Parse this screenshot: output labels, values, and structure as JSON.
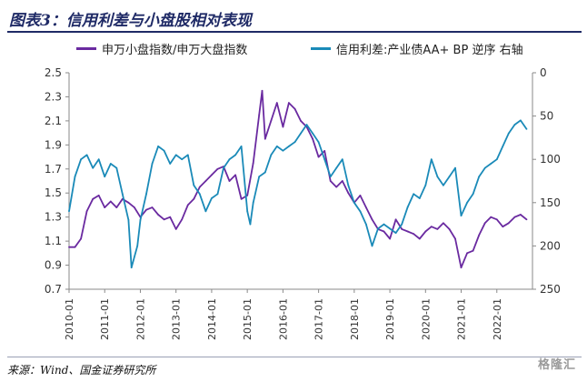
{
  "title": "图表3：信用利差与小盘股相对表现",
  "source": "来源：Wind、国金证券研究所",
  "watermark": "格隆汇",
  "colors": {
    "title": "#1f2a66",
    "series_purple": "#6a2aa0",
    "series_blue": "#1a8ab8"
  },
  "chart_data": {
    "type": "line",
    "x_ticks": [
      "2010-01",
      "2011-01",
      "2012-01",
      "2013-01",
      "2014-01",
      "2015-01",
      "2016-01",
      "2017-01",
      "2018-01",
      "2019-01",
      "2020-01",
      "2021-01",
      "2022-01"
    ],
    "left_axis": {
      "ticks": [
        "2.5",
        "2.3",
        "2.1",
        "1.9",
        "1.7",
        "1.5",
        "1.3",
        "1.1",
        "0.9",
        "0.7"
      ],
      "ylim": [
        0.7,
        2.5
      ]
    },
    "right_axis": {
      "ticks": [
        "0",
        "50",
        "100",
        "150",
        "200",
        "250"
      ],
      "ylim": [
        0,
        250
      ],
      "inverted": true
    },
    "legend_position": "top",
    "series": [
      {
        "name": "申万小盘指数/申万大盘指数",
        "axis": "left",
        "points": [
          [
            "2010-01",
            1.05
          ],
          [
            "2010-03",
            1.05
          ],
          [
            "2010-05",
            1.12
          ],
          [
            "2010-07",
            1.35
          ],
          [
            "2010-09",
            1.45
          ],
          [
            "2010-11",
            1.48
          ],
          [
            "2011-01",
            1.38
          ],
          [
            "2011-03",
            1.43
          ],
          [
            "2011-05",
            1.38
          ],
          [
            "2011-07",
            1.45
          ],
          [
            "2011-09",
            1.42
          ],
          [
            "2011-11",
            1.38
          ],
          [
            "2012-01",
            1.3
          ],
          [
            "2012-03",
            1.36
          ],
          [
            "2012-05",
            1.38
          ],
          [
            "2012-07",
            1.32
          ],
          [
            "2012-09",
            1.28
          ],
          [
            "2012-11",
            1.3
          ],
          [
            "2013-01",
            1.2
          ],
          [
            "2013-03",
            1.28
          ],
          [
            "2013-05",
            1.4
          ],
          [
            "2013-07",
            1.45
          ],
          [
            "2013-09",
            1.55
          ],
          [
            "2013-11",
            1.6
          ],
          [
            "2014-01",
            1.65
          ],
          [
            "2014-03",
            1.7
          ],
          [
            "2014-05",
            1.72
          ],
          [
            "2014-07",
            1.6
          ],
          [
            "2014-09",
            1.65
          ],
          [
            "2014-11",
            1.45
          ],
          [
            "2015-01",
            1.48
          ],
          [
            "2015-03",
            1.75
          ],
          [
            "2015-05",
            2.15
          ],
          [
            "2015-06",
            2.35
          ],
          [
            "2015-07",
            1.95
          ],
          [
            "2015-09",
            2.1
          ],
          [
            "2015-11",
            2.25
          ],
          [
            "2016-01",
            2.05
          ],
          [
            "2016-03",
            2.25
          ],
          [
            "2016-05",
            2.2
          ],
          [
            "2016-07",
            2.1
          ],
          [
            "2016-09",
            2.05
          ],
          [
            "2016-11",
            1.95
          ],
          [
            "2017-01",
            1.8
          ],
          [
            "2017-03",
            1.85
          ],
          [
            "2017-05",
            1.6
          ],
          [
            "2017-07",
            1.55
          ],
          [
            "2017-09",
            1.6
          ],
          [
            "2017-11",
            1.5
          ],
          [
            "2018-01",
            1.42
          ],
          [
            "2018-03",
            1.48
          ],
          [
            "2018-05",
            1.38
          ],
          [
            "2018-07",
            1.28
          ],
          [
            "2018-09",
            1.2
          ],
          [
            "2018-11",
            1.18
          ],
          [
            "2019-01",
            1.12
          ],
          [
            "2019-03",
            1.28
          ],
          [
            "2019-05",
            1.2
          ],
          [
            "2019-07",
            1.18
          ],
          [
            "2019-09",
            1.16
          ],
          [
            "2019-11",
            1.12
          ],
          [
            "2020-01",
            1.18
          ],
          [
            "2020-03",
            1.22
          ],
          [
            "2020-05",
            1.2
          ],
          [
            "2020-07",
            1.25
          ],
          [
            "2020-09",
            1.2
          ],
          [
            "2020-11",
            1.12
          ],
          [
            "2021-01",
            0.88
          ],
          [
            "2021-03",
            1.0
          ],
          [
            "2021-05",
            1.02
          ],
          [
            "2021-07",
            1.15
          ],
          [
            "2021-09",
            1.25
          ],
          [
            "2021-11",
            1.3
          ],
          [
            "2022-01",
            1.28
          ],
          [
            "2022-03",
            1.22
          ],
          [
            "2022-05",
            1.25
          ],
          [
            "2022-07",
            1.3
          ],
          [
            "2022-09",
            1.32
          ],
          [
            "2022-11",
            1.28
          ]
        ]
      },
      {
        "name": "信用利差:产业债AA+ BP 逆序 右轴",
        "axis": "right",
        "points": [
          [
            "2010-01",
            160
          ],
          [
            "2010-03",
            120
          ],
          [
            "2010-05",
            100
          ],
          [
            "2010-07",
            95
          ],
          [
            "2010-09",
            110
          ],
          [
            "2010-11",
            100
          ],
          [
            "2011-01",
            120
          ],
          [
            "2011-03",
            105
          ],
          [
            "2011-05",
            110
          ],
          [
            "2011-07",
            140
          ],
          [
            "2011-09",
            170
          ],
          [
            "2011-10",
            225
          ],
          [
            "2011-12",
            200
          ],
          [
            "2012-01",
            170
          ],
          [
            "2012-03",
            140
          ],
          [
            "2012-05",
            105
          ],
          [
            "2012-07",
            85
          ],
          [
            "2012-09",
            90
          ],
          [
            "2012-11",
            105
          ],
          [
            "2013-01",
            95
          ],
          [
            "2013-03",
            100
          ],
          [
            "2013-05",
            95
          ],
          [
            "2013-07",
            130
          ],
          [
            "2013-09",
            140
          ],
          [
            "2013-11",
            160
          ],
          [
            "2014-01",
            145
          ],
          [
            "2014-03",
            140
          ],
          [
            "2014-05",
            110
          ],
          [
            "2014-07",
            100
          ],
          [
            "2014-09",
            95
          ],
          [
            "2014-11",
            85
          ],
          [
            "2015-01",
            160
          ],
          [
            "2015-02",
            175
          ],
          [
            "2015-03",
            150
          ],
          [
            "2015-05",
            120
          ],
          [
            "2015-07",
            115
          ],
          [
            "2015-09",
            95
          ],
          [
            "2015-11",
            85
          ],
          [
            "2016-01",
            90
          ],
          [
            "2016-03",
            85
          ],
          [
            "2016-05",
            80
          ],
          [
            "2016-07",
            70
          ],
          [
            "2016-09",
            60
          ],
          [
            "2016-11",
            70
          ],
          [
            "2017-01",
            80
          ],
          [
            "2017-03",
            100
          ],
          [
            "2017-05",
            120
          ],
          [
            "2017-07",
            110
          ],
          [
            "2017-09",
            100
          ],
          [
            "2017-11",
            130
          ],
          [
            "2018-01",
            150
          ],
          [
            "2018-03",
            160
          ],
          [
            "2018-05",
            175
          ],
          [
            "2018-07",
            200
          ],
          [
            "2018-09",
            180
          ],
          [
            "2018-11",
            175
          ],
          [
            "2019-01",
            180
          ],
          [
            "2019-03",
            185
          ],
          [
            "2019-05",
            175
          ],
          [
            "2019-07",
            155
          ],
          [
            "2019-09",
            140
          ],
          [
            "2019-11",
            145
          ],
          [
            "2020-01",
            130
          ],
          [
            "2020-03",
            100
          ],
          [
            "2020-05",
            120
          ],
          [
            "2020-07",
            130
          ],
          [
            "2020-09",
            120
          ],
          [
            "2020-11",
            110
          ],
          [
            "2021-01",
            165
          ],
          [
            "2021-03",
            150
          ],
          [
            "2021-05",
            140
          ],
          [
            "2021-07",
            120
          ],
          [
            "2021-09",
            110
          ],
          [
            "2021-11",
            105
          ],
          [
            "2022-01",
            100
          ],
          [
            "2022-03",
            85
          ],
          [
            "2022-05",
            70
          ],
          [
            "2022-07",
            60
          ],
          [
            "2022-09",
            55
          ],
          [
            "2022-11",
            65
          ]
        ]
      }
    ]
  }
}
